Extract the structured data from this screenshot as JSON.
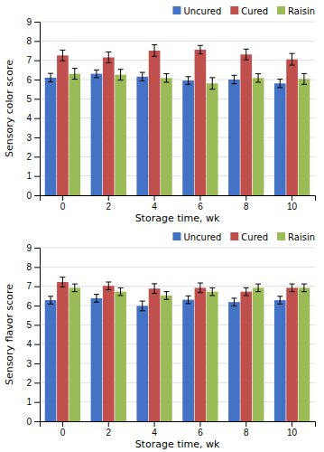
{
  "chart_data": [
    {
      "type": "bar",
      "categories": [
        "0",
        "2",
        "4",
        "6",
        "8",
        "10"
      ],
      "series": [
        {
          "name": "Uncured",
          "color": "#4472C4",
          "values": [
            6.1,
            6.3,
            6.15,
            5.95,
            6.0,
            5.8
          ],
          "errors": [
            0.22,
            0.2,
            0.22,
            0.2,
            0.22,
            0.22
          ]
        },
        {
          "name": "Cured",
          "color": "#C0504D",
          "values": [
            7.25,
            7.15,
            7.5,
            7.55,
            7.3,
            7.05
          ],
          "errors": [
            0.28,
            0.28,
            0.3,
            0.22,
            0.28,
            0.3
          ]
        },
        {
          "name": "Raisin",
          "color": "#9BBB59",
          "values": [
            6.3,
            6.25,
            6.08,
            5.8,
            6.08,
            6.03
          ],
          "errors": [
            0.28,
            0.28,
            0.22,
            0.3,
            0.22,
            0.28
          ]
        }
      ],
      "xlabel": "Storage time, wk",
      "ylabel": "Sensory color score",
      "ylim": [
        0,
        9
      ],
      "yticks": [
        0,
        1,
        2,
        3,
        4,
        5,
        6,
        7,
        8,
        9
      ],
      "grid": true,
      "legend": "upper right"
    },
    {
      "type": "bar",
      "categories": [
        "0",
        "2",
        "4",
        "6",
        "8",
        "10"
      ],
      "series": [
        {
          "name": "Uncured",
          "color": "#4472C4",
          "values": [
            6.28,
            6.38,
            5.98,
            6.3,
            6.18,
            6.28
          ],
          "errors": [
            0.2,
            0.2,
            0.25,
            0.2,
            0.2,
            0.2
          ]
        },
        {
          "name": "Cured",
          "color": "#C0504D",
          "values": [
            7.22,
            7.02,
            6.88,
            6.92,
            6.72,
            6.92
          ],
          "errors": [
            0.25,
            0.2,
            0.25,
            0.25,
            0.2,
            0.2
          ]
        },
        {
          "name": "Raisin",
          "color": "#9BBB59",
          "values": [
            6.92,
            6.72,
            6.52,
            6.72,
            6.92,
            6.92
          ],
          "errors": [
            0.2,
            0.2,
            0.2,
            0.2,
            0.2,
            0.2
          ]
        }
      ],
      "xlabel": "Storage time, wk",
      "ylabel": "Sensory flavor score",
      "ylim": [
        0,
        9
      ],
      "yticks": [
        0,
        1,
        2,
        3,
        4,
        5,
        6,
        7,
        8,
        9
      ],
      "grid": true,
      "legend": "upper right"
    }
  ]
}
